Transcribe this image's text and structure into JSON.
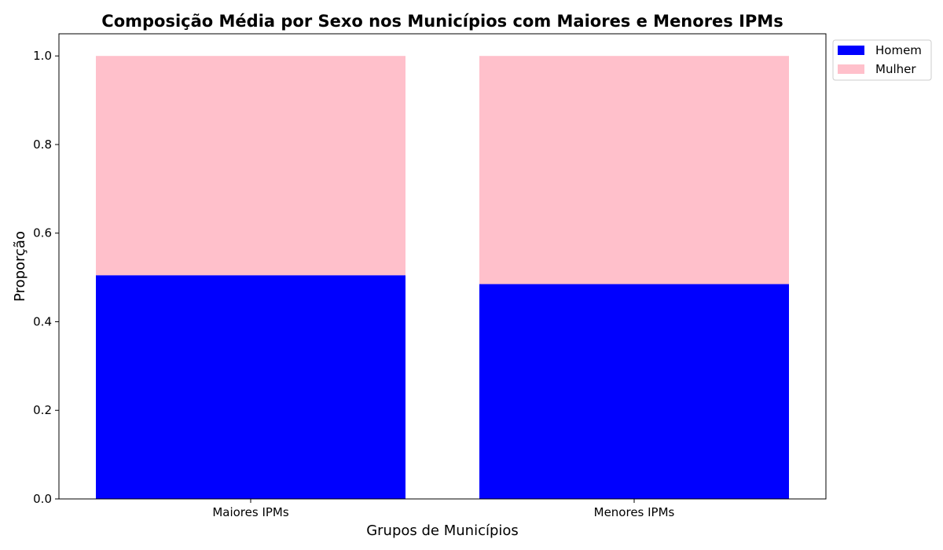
{
  "chart_data": {
    "type": "bar",
    "stacked": true,
    "title": "Composição Média por Sexo nos Municípios com Maiores e Menores IPMs",
    "xlabel": "Grupos de Municípios",
    "ylabel": "Proporção",
    "categories": [
      "Maiores IPMs",
      "Menores IPMs"
    ],
    "series": [
      {
        "name": "Homem",
        "color": "#0000ff",
        "values": [
          0.505,
          0.485
        ]
      },
      {
        "name": "Mulher",
        "color": "#ffc0cb",
        "values": [
          0.495,
          0.515
        ]
      }
    ],
    "ylim": [
      0,
      1.05
    ],
    "yticks": [
      "0.0",
      "0.2",
      "0.4",
      "0.6",
      "0.8",
      "1.0"
    ],
    "grid": false,
    "legend_position": "outside-top-right"
  }
}
